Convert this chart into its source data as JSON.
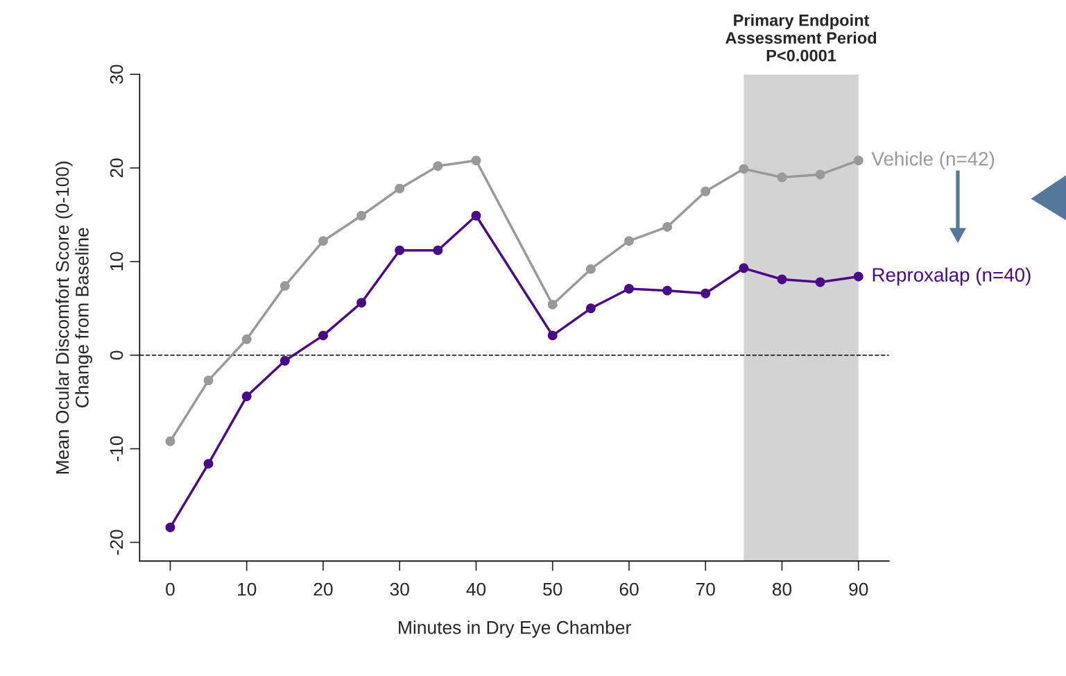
{
  "chart_data": {
    "type": "line",
    "xlabel": "Minutes in Dry Eye Chamber",
    "ylabel": "Mean Ocular Discomfort Score (0-100)\nChange from Baseline",
    "x": [
      0,
      5,
      10,
      15,
      20,
      25,
      30,
      35,
      40,
      50,
      55,
      60,
      65,
      70,
      75,
      80,
      85,
      90
    ],
    "series": [
      {
        "name": "Vehicle (n=42)",
        "color": "#999999",
        "values": [
          -9.2,
          -2.7,
          1.7,
          7.4,
          12.2,
          14.9,
          17.8,
          20.2,
          20.8,
          5.4,
          9.2,
          12.2,
          13.7,
          17.5,
          19.9,
          19.0,
          19.3,
          20.8
        ]
      },
      {
        "name": "Reproxalap (n=40)",
        "color": "#4b0a85",
        "values": [
          -18.4,
          -11.6,
          -4.4,
          -0.6,
          2.1,
          5.6,
          11.2,
          11.2,
          14.9,
          2.1,
          5.0,
          7.1,
          6.9,
          6.6,
          9.3,
          8.1,
          7.8,
          8.4
        ]
      }
    ],
    "xlim": [
      -4,
      94
    ],
    "ylim": [
      -22,
      30
    ],
    "xticks": [
      0,
      10,
      20,
      30,
      40,
      50,
      60,
      70,
      80,
      90
    ],
    "yticks": [
      -20,
      -10,
      0,
      10,
      20,
      30
    ],
    "ref_lines": [
      {
        "axis": "y",
        "value": 0,
        "color": "#000000",
        "line_style": "dashed"
      }
    ],
    "bands": [
      {
        "axis": "x",
        "from": 75,
        "to": 90,
        "label": "Primary Endpoint\nAssessment Period\nP<0.0001",
        "color": "#d3d3d3"
      }
    ],
    "marker": "circle",
    "line_style": "solid",
    "grid": false,
    "legend": false
  }
}
